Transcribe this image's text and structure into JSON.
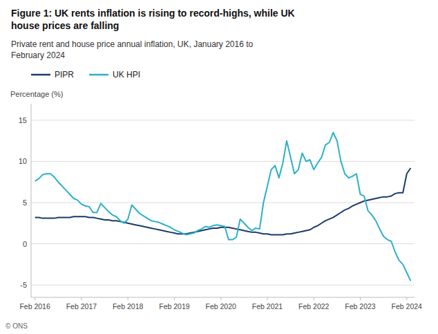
{
  "chart_data": {
    "type": "line",
    "title": "Figure 1: UK rents inflation is rising to record-highs, while UK\nhouse prices are falling",
    "subtitle": "Private rent and house price annual inflation, UK, January 2016 to\nFebruary 2024",
    "y_label": "Percentage (%)",
    "annotations": [
      "© ONS"
    ],
    "categories": [
      "Feb 2016",
      null,
      null,
      null,
      null,
      null,
      null,
      null,
      null,
      null,
      null,
      null,
      "Feb 2017",
      null,
      null,
      null,
      null,
      null,
      null,
      null,
      null,
      null,
      null,
      null,
      "Feb 2018",
      null,
      null,
      null,
      null,
      null,
      null,
      null,
      null,
      null,
      null,
      null,
      "Feb 2019",
      null,
      null,
      null,
      null,
      null,
      null,
      null,
      null,
      null,
      null,
      null,
      "Feb 2020",
      null,
      null,
      null,
      null,
      null,
      null,
      null,
      null,
      null,
      null,
      null,
      "Feb 2021",
      null,
      null,
      null,
      null,
      null,
      null,
      null,
      null,
      null,
      null,
      null,
      "Feb 2022",
      null,
      null,
      null,
      null,
      null,
      null,
      null,
      null,
      null,
      null,
      null,
      "Feb 2023",
      null,
      null,
      null,
      null,
      null,
      null,
      null,
      null,
      null,
      null,
      null,
      "Feb 2024",
      null
    ],
    "series": [
      {
        "name": "PIPR",
        "color": "#1a3a6b",
        "values": [
          3.2,
          3.2,
          3.1,
          3.1,
          3.1,
          3.1,
          3.2,
          3.2,
          3.2,
          3.2,
          3.3,
          3.3,
          3.3,
          3.3,
          3.2,
          3.2,
          3.1,
          3.0,
          2.9,
          2.9,
          2.8,
          2.8,
          2.7,
          2.6,
          2.5,
          2.4,
          2.3,
          2.2,
          2.1,
          2.0,
          1.9,
          1.8,
          1.7,
          1.6,
          1.5,
          1.4,
          1.3,
          1.2,
          1.2,
          1.2,
          1.3,
          1.4,
          1.5,
          1.6,
          1.7,
          1.8,
          1.9,
          1.9,
          2.0,
          2.0,
          2.0,
          1.9,
          1.8,
          1.7,
          1.6,
          1.5,
          1.4,
          1.4,
          1.3,
          1.2,
          1.2,
          1.1,
          1.1,
          1.1,
          1.1,
          1.2,
          1.2,
          1.3,
          1.4,
          1.5,
          1.6,
          1.7,
          2.0,
          2.2,
          2.5,
          2.8,
          3.0,
          3.2,
          3.5,
          3.8,
          4.1,
          4.3,
          4.6,
          4.8,
          5.0,
          5.2,
          5.3,
          5.4,
          5.5,
          5.6,
          5.7,
          5.7,
          5.8,
          6.1,
          6.2,
          6.2,
          8.5,
          9.2
        ]
      },
      {
        "name": "UK HPI",
        "color": "#2ab0c8",
        "values": [
          7.6,
          7.9,
          8.4,
          8.5,
          8.5,
          8.1,
          7.5,
          7.0,
          6.5,
          6.0,
          5.5,
          5.3,
          4.8,
          4.6,
          4.5,
          3.8,
          3.8,
          4.9,
          4.4,
          3.9,
          3.5,
          3.3,
          2.8,
          2.5,
          3.0,
          4.7,
          4.2,
          3.7,
          3.4,
          3.1,
          2.8,
          2.7,
          2.6,
          2.4,
          2.2,
          2.0,
          1.7,
          1.5,
          1.3,
          1.1,
          1.2,
          1.3,
          1.6,
          1.8,
          2.1,
          2.0,
          2.2,
          2.3,
          2.2,
          2.1,
          0.5,
          0.5,
          0.8,
          3.0,
          2.5,
          2.0,
          1.6,
          1.9,
          1.8,
          5.0,
          7.0,
          9.0,
          9.5,
          8.0,
          9.8,
          12.5,
          10.5,
          8.5,
          9.0,
          11.0,
          10.0,
          10.2,
          9.0,
          9.8,
          10.5,
          12.0,
          12.3,
          13.5,
          12.5,
          10.0,
          8.5,
          8.0,
          8.2,
          8.5,
          6.0,
          5.8,
          4.0,
          3.5,
          2.8,
          1.8,
          0.9,
          0.5,
          0.3,
          -1.0,
          -2.0,
          -2.5,
          -3.5,
          -4.5
        ]
      }
    ],
    "ylim": [
      -6.5,
      17
    ],
    "yticks": [
      -5,
      0,
      5,
      10,
      15
    ],
    "grid": true,
    "legend": "upper left"
  }
}
